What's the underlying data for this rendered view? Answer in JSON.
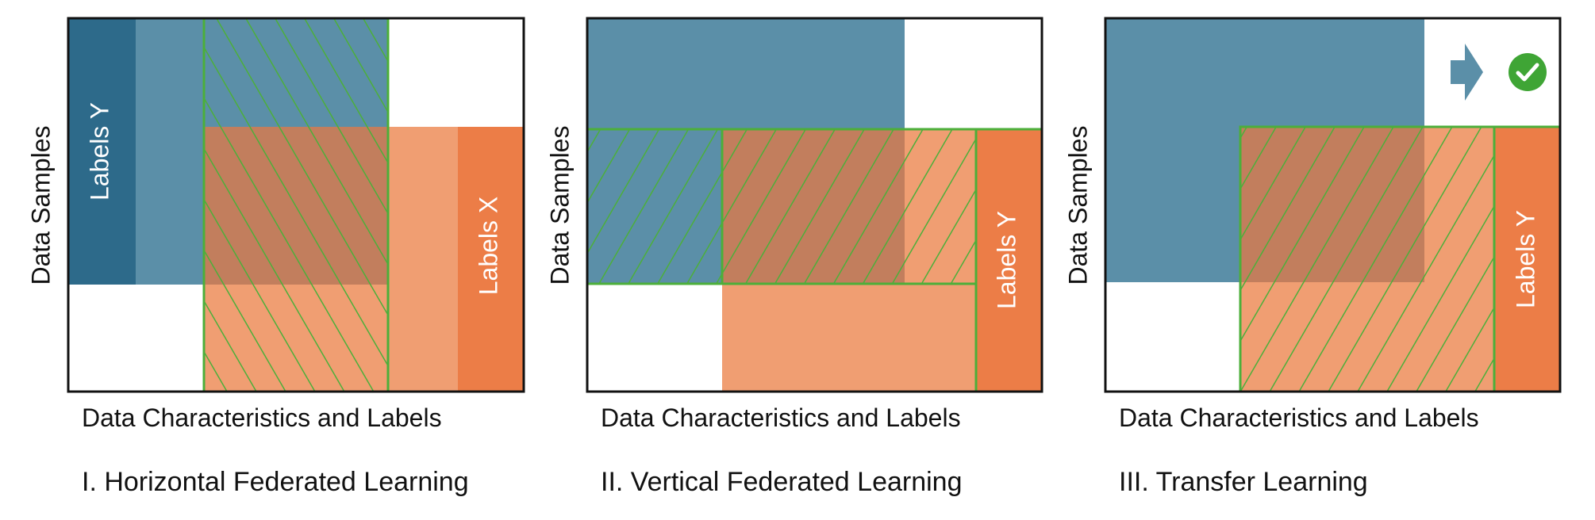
{
  "panels": [
    {
      "caption": "I. Horizontal Federated Learning",
      "xlabel": "Data Characteristics and Labels",
      "ylabel": "Data Samples",
      "label_a": "Labels Y",
      "label_b": "Labels X"
    },
    {
      "caption": "II. Vertical Federated Learning",
      "xlabel": "Data Characteristics and Labels",
      "ylabel": "Data Samples",
      "label_a": "Labels Y"
    },
    {
      "caption": "III. Transfer Learning",
      "xlabel": "Data Characteristics and Labels",
      "ylabel": "Data Samples",
      "label_a": "Labels Y"
    }
  ],
  "icons": {
    "arrow": "right-arrow-icon",
    "check": "check-circle-icon"
  },
  "colors": {
    "blue_dark": "#2d6a8a",
    "blue_light": "#5b8fa8",
    "orange_dark": "#ec7d47",
    "orange_light": "#f09e72",
    "overlap": "#c27e5d",
    "hatch": "#4caf3a",
    "check_green": "#3fa535"
  }
}
